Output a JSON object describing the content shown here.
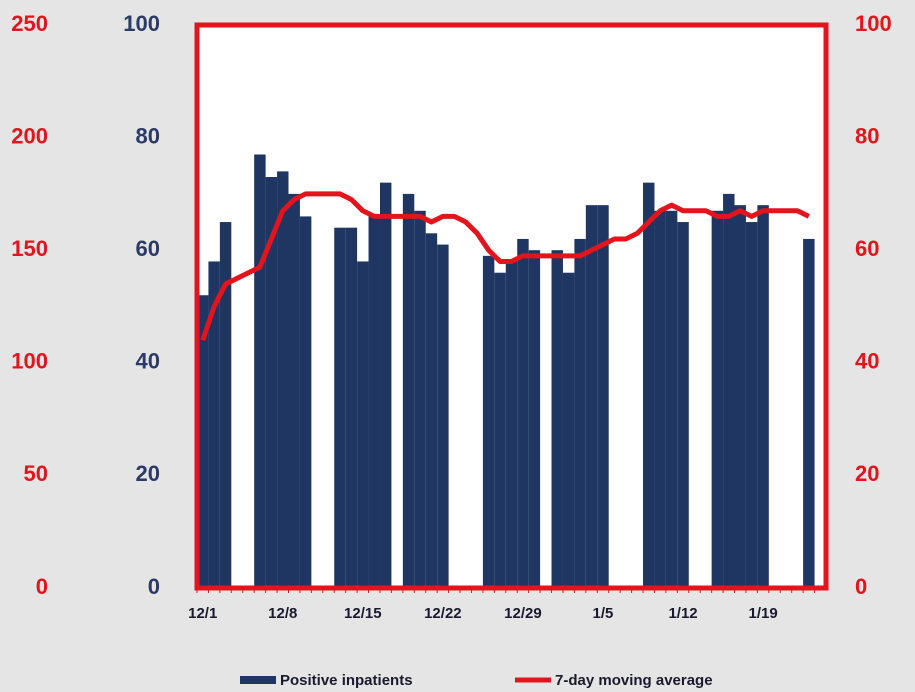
{
  "chart_data": {
    "type": "bar",
    "categories": [
      "12/1",
      null,
      null,
      null,
      null,
      null,
      null,
      "12/8",
      null,
      null,
      null,
      null,
      null,
      null,
      "12/15",
      null,
      null,
      null,
      null,
      null,
      null,
      "12/22",
      null,
      null,
      null,
      null,
      null,
      null,
      "12/29",
      null,
      null,
      null,
      null,
      null,
      null,
      "1/5",
      null,
      null,
      null,
      null,
      null,
      null,
      "1/12",
      null,
      null,
      null,
      null,
      null,
      null,
      "1/19",
      null,
      null,
      null,
      null,
      null
    ],
    "series": [
      {
        "name": "Positive inpatients",
        "color": "#1f3562",
        "type": "bar",
        "values": [
          52,
          58,
          65,
          null,
          null,
          77,
          73,
          74,
          70,
          66,
          null,
          null,
          64,
          64,
          58,
          66,
          72,
          null,
          70,
          67,
          63,
          61,
          null,
          null,
          null,
          59,
          56,
          58,
          62,
          60,
          null,
          60,
          56,
          62,
          68,
          68,
          null,
          null,
          null,
          72,
          67,
          67,
          65,
          null,
          null,
          67,
          70,
          68,
          65,
          68,
          null,
          null,
          null,
          62,
          null
        ]
      },
      {
        "name": "7-day moving average",
        "color": "#e3141c",
        "type": "line",
        "axis": "y2",
        "values": [
          44,
          50,
          54,
          55,
          56,
          57,
          62,
          67,
          69,
          70,
          70,
          70,
          70,
          69,
          67,
          66,
          66,
          66,
          66,
          66,
          65,
          66,
          66,
          65,
          63,
          60,
          58,
          58,
          59,
          59,
          59,
          59,
          59,
          59,
          60,
          61,
          62,
          62,
          63,
          65,
          67,
          68,
          67,
          67,
          67,
          66,
          66,
          67,
          66,
          67,
          67,
          67,
          67,
          66,
          null
        ]
      }
    ],
    "ylim": [
      0,
      100
    ],
    "yticks": [
      0,
      20,
      40,
      60,
      80,
      100
    ],
    "ycolor": "#2b3a67",
    "y2lim": [
      0,
      100
    ],
    "y2ticks": [
      0,
      20,
      40,
      60,
      80,
      100
    ],
    "y2color": "#e3141c",
    "y3lim": [
      0,
      250
    ],
    "y3ticks": [
      0,
      50,
      100,
      150,
      200,
      250
    ],
    "y3color": "#e3141c",
    "grid": false,
    "legend": "bottom"
  }
}
